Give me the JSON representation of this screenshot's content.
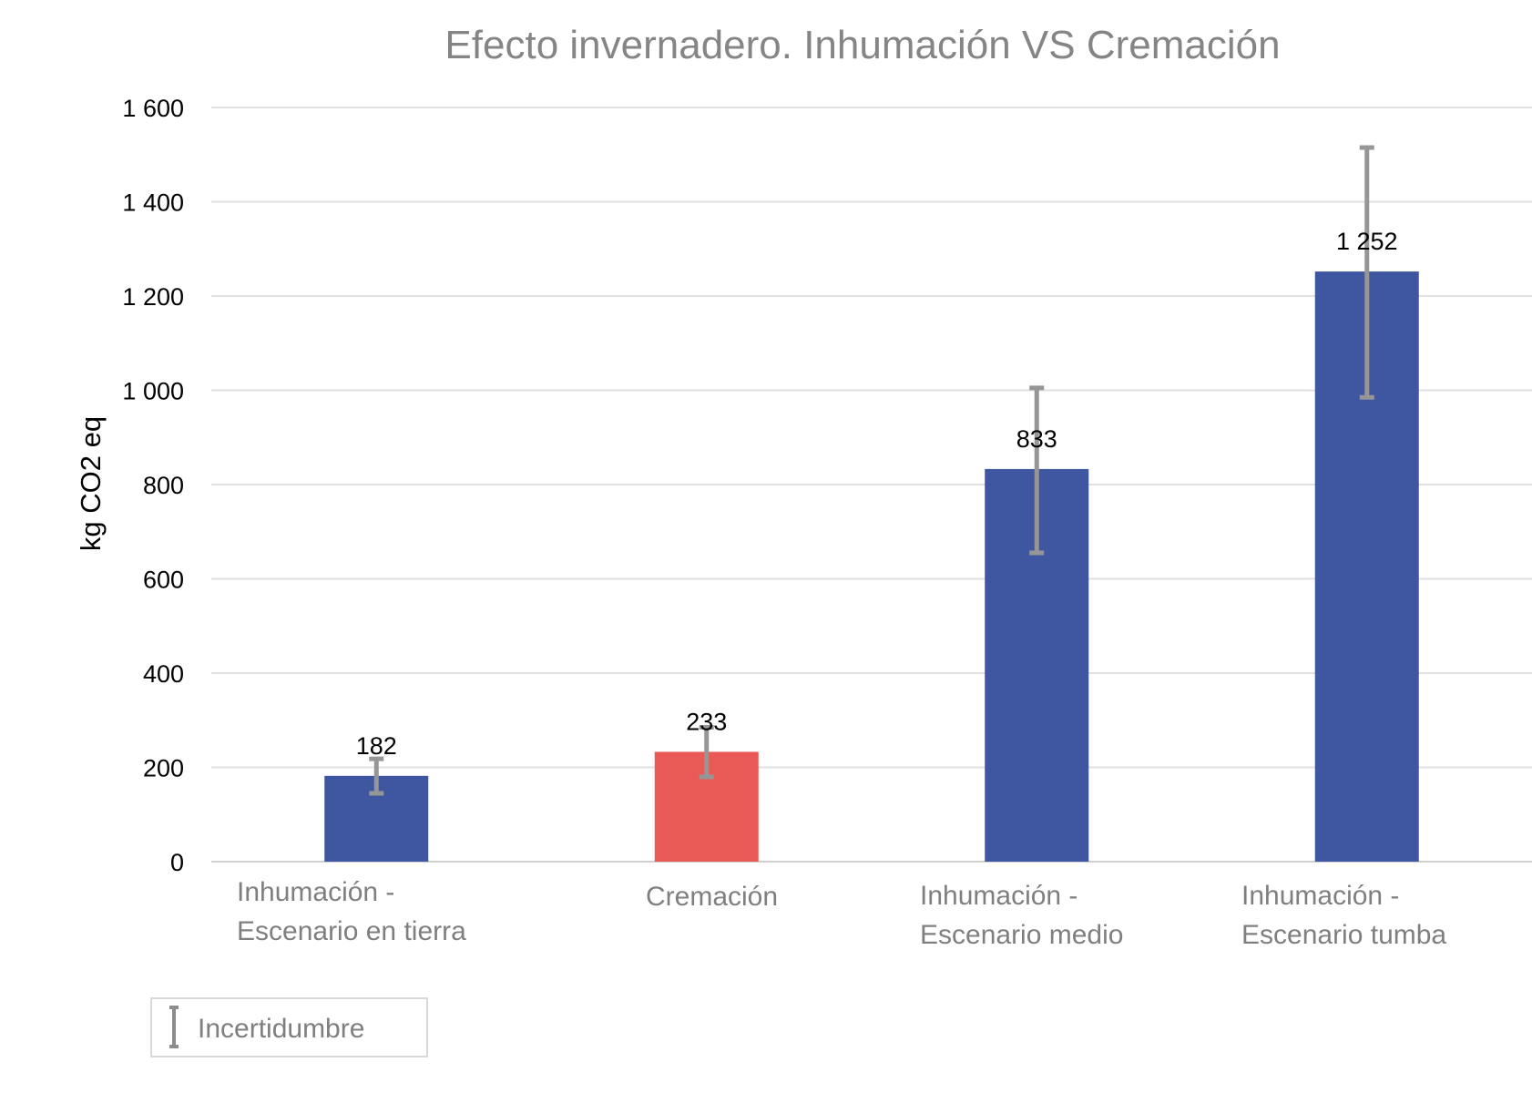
{
  "chart_data": {
    "type": "bar",
    "title": "Efecto invernadero. Inhumación VS Cremación",
    "ylabel": "kg CO2 eq",
    "xlabel": "",
    "ylim": [
      0,
      1600
    ],
    "yticks": [
      0,
      200,
      400,
      600,
      800,
      1000,
      1200,
      1400,
      1600
    ],
    "ytick_labels": [
      "0",
      "200",
      "400",
      "600",
      "800",
      "1 000",
      "1 200",
      "1 400",
      "1 600"
    ],
    "grid": true,
    "categories": [
      [
        "Inhumación -",
        "Escenario en tierra"
      ],
      [
        "Cremación"
      ],
      [
        "Inhumación -",
        "Escenario medio"
      ],
      [
        "Inhumación -",
        "Escenario tumba"
      ]
    ],
    "values": [
      182,
      233,
      833,
      1252
    ],
    "value_labels": [
      "182",
      "233",
      "833",
      "1 252"
    ],
    "error_low": [
      145,
      180,
      655,
      985
    ],
    "error_high": [
      218,
      285,
      1005,
      1515
    ],
    "bar_colors": [
      "#3f56a0",
      "#e95a57",
      "#3f56a0",
      "#3f56a0"
    ],
    "error_color": "#969696",
    "legend": {
      "label": "Incertidumbre",
      "position": "bottom-left"
    }
  }
}
